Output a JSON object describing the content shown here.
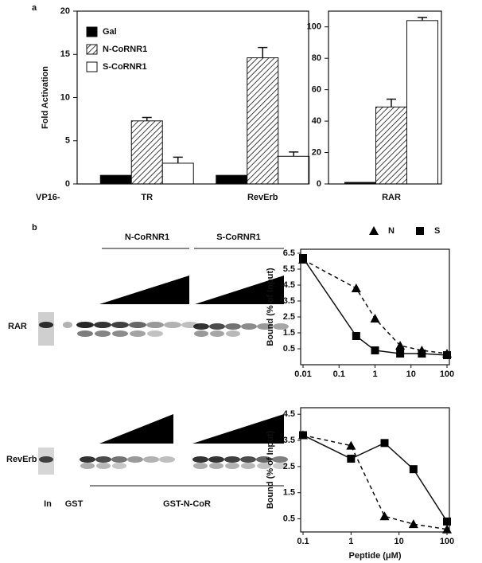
{
  "panel_labels": [
    "a",
    "b"
  ],
  "chart_data": [
    {
      "type": "bar",
      "ylabel": "Fold Activation",
      "x_prefix": "VP16-",
      "categories": [
        "TR",
        "RevErb"
      ],
      "ylim": [
        0,
        20
      ],
      "yticks": [
        0,
        5,
        10,
        15,
        20
      ],
      "legend": "upper left",
      "series": [
        {
          "name": "Gal",
          "color": "#000000",
          "values": [
            1,
            1
          ]
        },
        {
          "name": "N-CoRNR1",
          "color": "#ffffff",
          "hatch": true,
          "values": [
            7.3,
            14.6
          ],
          "errors": [
            0.4,
            1.2
          ]
        },
        {
          "name": "S-CoRNR1",
          "color": "#ffffff",
          "values": [
            2.4,
            3.2
          ],
          "errors": [
            0.7,
            0.5
          ]
        }
      ]
    },
    {
      "type": "bar",
      "categories": [
        "RAR"
      ],
      "ylim": [
        0,
        110
      ],
      "yticks": [
        0,
        20,
        40,
        60,
        80,
        100
      ],
      "series": [
        {
          "color": "#000000",
          "values": [
            1
          ]
        },
        {
          "color": "#ffffff",
          "hatch": true,
          "values": [
            49
          ],
          "errors": [
            5
          ]
        },
        {
          "color": "#ffffff",
          "values": [
            104
          ],
          "errors": [
            2
          ]
        }
      ]
    },
    {
      "type": "line",
      "ylabel": "Bound (% of Input)",
      "xscale": "log",
      "xlim": [
        0.01,
        100
      ],
      "xticks": [
        0.01,
        0.1,
        1,
        10,
        100
      ],
      "ylim": [
        -0.5,
        6.75
      ],
      "yticks": [
        0.5,
        1.5,
        2.5,
        3.5,
        4.5,
        5.5,
        6.5
      ],
      "legend": "top",
      "series": [
        {
          "name": "N",
          "marker": "triangle",
          "dash": true,
          "x": [
            0.01,
            0.3,
            1,
            5,
            20,
            100
          ],
          "values": [
            6.1,
            4.3,
            2.4,
            0.7,
            0.4,
            0.2
          ]
        },
        {
          "name": "S",
          "marker": "square",
          "dash": false,
          "x": [
            0.01,
            0.3,
            1,
            5,
            20,
            100
          ],
          "values": [
            6.2,
            1.3,
            0.4,
            0.2,
            0.2,
            0.1
          ]
        }
      ]
    },
    {
      "type": "line",
      "ylabel": "Bound (% of Input)",
      "xlabel": "Peptide (μM)",
      "xscale": "log",
      "xlim": [
        0.1,
        100
      ],
      "xticks": [
        0.1,
        1,
        10,
        100
      ],
      "ylim": [
        0,
        4.75
      ],
      "yticks": [
        0.5,
        1.5,
        2.5,
        3.5,
        4.5
      ],
      "series": [
        {
          "marker": "triangle",
          "dash": true,
          "x": [
            0.1,
            1,
            5,
            20,
            100
          ],
          "values": [
            3.7,
            3.3,
            0.6,
            0.3,
            0.1
          ]
        },
        {
          "marker": "square",
          "dash": false,
          "x": [
            0.1,
            1,
            5,
            20,
            100
          ],
          "values": [
            3.7,
            2.8,
            3.4,
            2.4,
            0.4
          ]
        }
      ]
    }
  ],
  "gel": {
    "group_labels": [
      "N-CoRNR1",
      "S-CoRNR1"
    ],
    "row_labels": [
      "RAR",
      "RevErb"
    ],
    "lane_labels": [
      "In",
      "GST"
    ],
    "bottom_label": "GST-N-CoR"
  }
}
